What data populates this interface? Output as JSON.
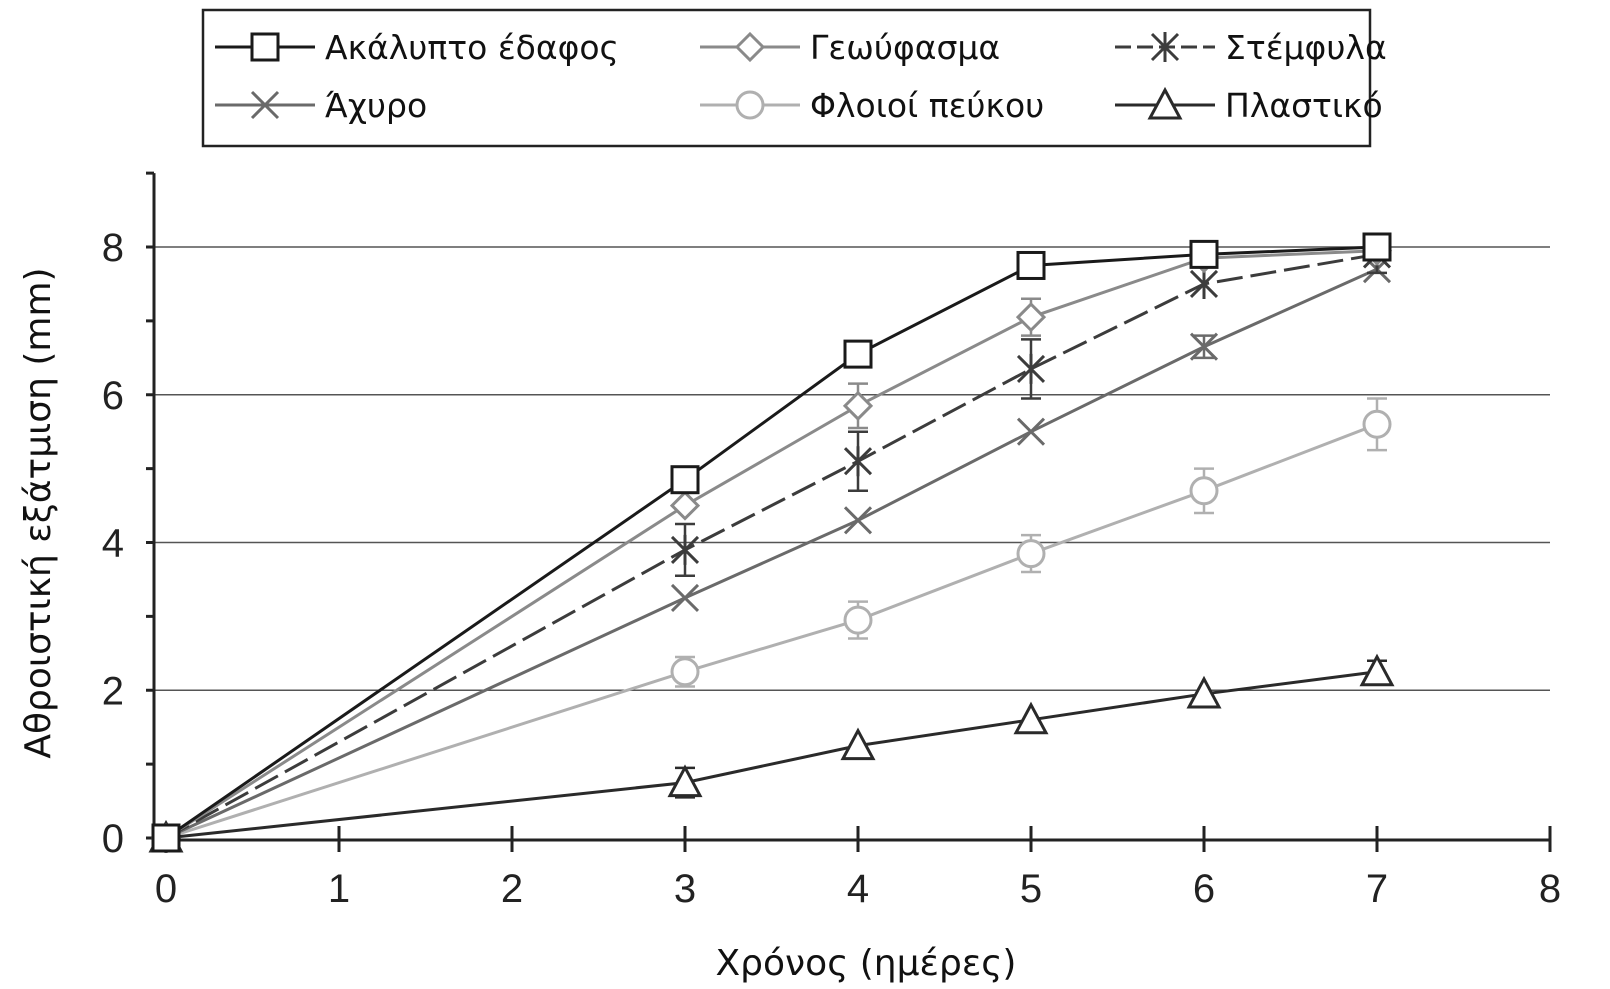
{
  "chart_data": {
    "type": "line",
    "xlabel": "Χρόνος (ημέρες)",
    "ylabel": "Αθροιστική εξάτμιση (mm)",
    "xlim": [
      0,
      8
    ],
    "ylim": [
      0,
      9
    ],
    "xticks": [
      0,
      1,
      2,
      3,
      4,
      5,
      6,
      7,
      8
    ],
    "yticks": [
      0,
      2,
      4,
      6,
      8
    ],
    "grid": "horizontal",
    "legend": "top",
    "series": [
      {
        "name": "Ακάλυπτο έδαφος",
        "marker": "square",
        "color": "#1a1a1a",
        "x": [
          0,
          3,
          4,
          5,
          6,
          7
        ],
        "y": [
          0,
          4.85,
          6.55,
          7.75,
          7.9,
          8.0
        ],
        "err": [
          0,
          0,
          0,
          0,
          0,
          0
        ]
      },
      {
        "name": "Γεωύφασμα",
        "marker": "diamond",
        "color": "#8a8a8a",
        "x": [
          0,
          3,
          4,
          5,
          6,
          7
        ],
        "y": [
          0,
          4.5,
          5.85,
          7.05,
          7.85,
          7.95
        ],
        "err": [
          0,
          0,
          0.3,
          0.25,
          0,
          0
        ]
      },
      {
        "name": "Στέμφυλα",
        "marker": "asterisk",
        "color": "#3c3c3c",
        "dash": "26 8",
        "x": [
          0,
          3,
          4,
          5,
          6,
          7
        ],
        "y": [
          0,
          3.9,
          5.1,
          6.35,
          7.5,
          7.9
        ],
        "err": [
          0,
          0.35,
          0.4,
          0.4,
          0,
          0.25
        ]
      },
      {
        "name": "Άχυρο",
        "marker": "cross",
        "color": "#6a6a6a",
        "x": [
          0,
          3,
          4,
          5,
          6,
          7
        ],
        "y": [
          0,
          3.25,
          4.3,
          5.5,
          6.65,
          7.7
        ],
        "err": [
          0,
          0,
          0,
          0,
          0.15,
          0
        ]
      },
      {
        "name": "Φλοιοί πεύκου",
        "marker": "circle",
        "color": "#b0b0b0",
        "x": [
          0,
          3,
          4,
          5,
          6,
          7
        ],
        "y": [
          0,
          2.25,
          2.95,
          3.85,
          4.7,
          5.6
        ],
        "err": [
          0,
          0.2,
          0.25,
          0.25,
          0.3,
          0.35
        ]
      },
      {
        "name": "Πλαστικό",
        "marker": "triangle",
        "color": "#2a2a2a",
        "x": [
          0,
          3,
          4,
          5,
          6,
          7
        ],
        "y": [
          0,
          0.75,
          1.25,
          1.6,
          1.95,
          2.25
        ],
        "err": [
          0,
          0.2,
          0,
          0,
          0,
          0.15
        ]
      }
    ]
  }
}
